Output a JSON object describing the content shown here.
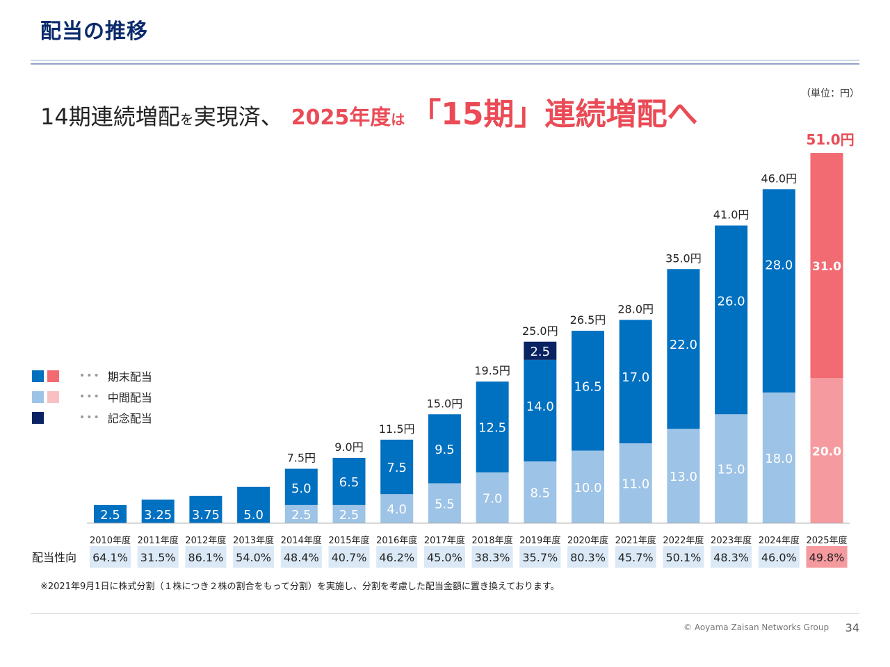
{
  "page": {
    "title": "配当の推移",
    "unit": "（単位：円）",
    "page_number": "34",
    "copyright": "© Aoyama Zaisan Networks Group",
    "footnote": "※2021年9月1日に株式分割（１株につき２株の割合をもって分割）を実施し、分割を考慮した配当金額に置き換えております。"
  },
  "headline": {
    "part1": "14期連続増配",
    "part2": "を",
    "part3": "実現済、",
    "part4": "2025年度",
    "part5": "は",
    "part6": "「15期」連続増配へ"
  },
  "legend": {
    "items": [
      {
        "label": "期末配当"
      },
      {
        "label": "中間配当"
      },
      {
        "label": "記念配当"
      }
    ],
    "dots": "•••"
  },
  "colors": {
    "year_end": "#0070c0",
    "interim": "#9dc3e6",
    "commemorative": "#0a2363",
    "forecast_year_end": "#f26a72",
    "forecast_interim": "#f59a9f",
    "accent_red": "#ea4b56",
    "payout_cell": "#dbe9f6",
    "payout_cell_forecast": "#f59a9f"
  },
  "chart_data": {
    "type": "bar",
    "stacked": true,
    "categories": [
      "2010年度",
      "2011年度",
      "2012年度",
      "2013年度",
      "2014年度",
      "2015年度",
      "2016年度",
      "2017年度",
      "2018年度",
      "2019年度",
      "2020年度",
      "2021年度",
      "2022年度",
      "2023年度",
      "2024年度",
      "2025年度"
    ],
    "series": [
      {
        "name": "中間配当",
        "values": [
          0,
          0,
          0,
          0,
          2.5,
          2.5,
          4.0,
          5.5,
          7.0,
          8.5,
          10.0,
          11.0,
          13.0,
          15.0,
          18.0,
          20.0
        ],
        "labels": [
          "",
          "",
          "",
          "",
          "2.5",
          "2.5",
          "4.0",
          "5.5",
          "7.0",
          "8.5",
          "10.0",
          "11.0",
          "13.0",
          "15.0",
          "18.0",
          "20.0"
        ]
      },
      {
        "name": "期末配当",
        "values": [
          2.5,
          3.25,
          3.75,
          5.0,
          5.0,
          6.5,
          7.5,
          9.5,
          12.5,
          14.0,
          16.5,
          17.0,
          22.0,
          26.0,
          28.0,
          31.0
        ],
        "labels": [
          "2.5",
          "3.25",
          "3.75",
          "5.0",
          "5.0",
          "6.5",
          "7.5",
          "9.5",
          "12.5",
          "14.0",
          "16.5",
          "17.0",
          "22.0",
          "26.0",
          "28.0",
          "31.0"
        ]
      },
      {
        "name": "記念配当",
        "values": [
          0,
          0,
          0,
          0,
          0,
          0,
          0,
          0,
          0,
          2.5,
          0,
          0,
          0,
          0,
          0,
          0
        ],
        "labels": [
          "",
          "",
          "",
          "",
          "",
          "",
          "",
          "",
          "",
          "2.5",
          "",
          "",
          "",
          "",
          "",
          ""
        ]
      }
    ],
    "totals": [
      "",
      "",
      "",
      "",
      "7.5円",
      "9.0円",
      "11.5円",
      "15.0円",
      "19.5円",
      "25.0円",
      "26.5円",
      "28.0円",
      "35.0円",
      "41.0円",
      "46.0円",
      "51.0円"
    ],
    "forecast_index": 15,
    "ylim": [
      0,
      51
    ],
    "row_label": "配当性向",
    "payout_ratio": [
      "64.1%",
      "31.5%",
      "86.1%",
      "54.0%",
      "48.4%",
      "40.7%",
      "46.2%",
      "45.0%",
      "38.3%",
      "35.7%",
      "80.3%",
      "45.7%",
      "50.1%",
      "48.3%",
      "46.0%",
      "49.8%"
    ]
  }
}
